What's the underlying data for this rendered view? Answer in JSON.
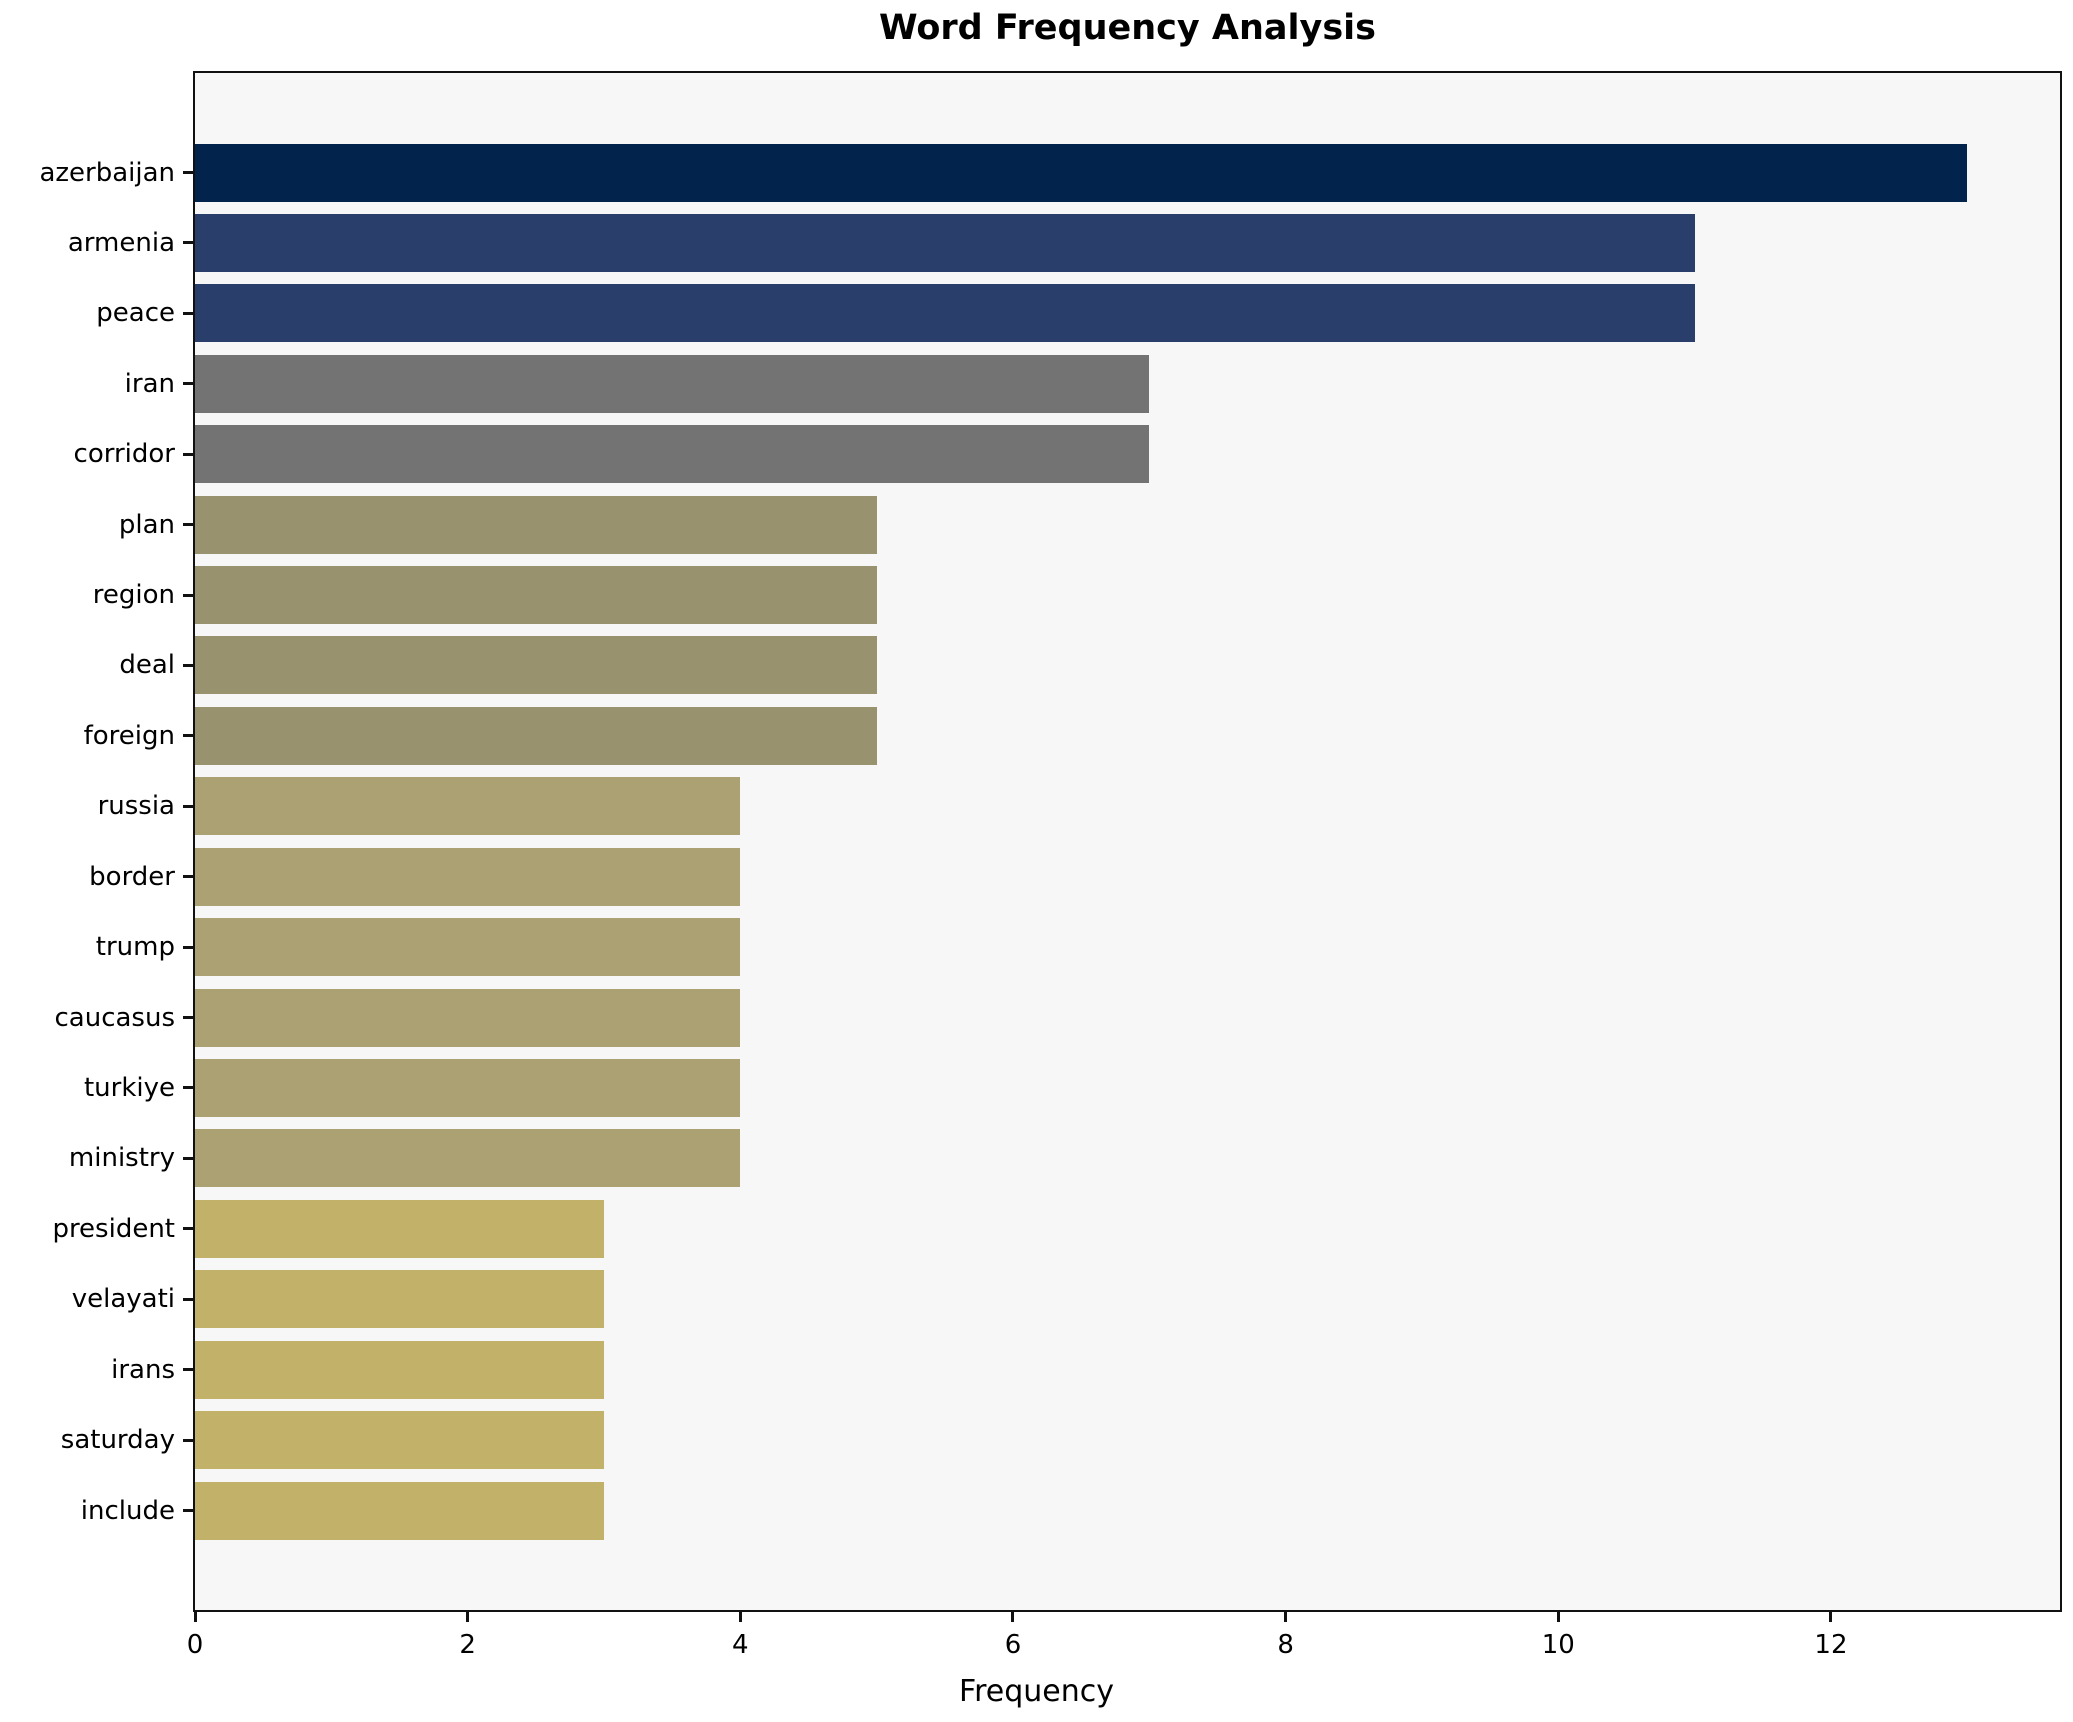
{
  "title": "Word Frequency Analysis",
  "chart_data": {
    "type": "bar",
    "orientation": "horizontal",
    "title": "Word Frequency Analysis",
    "xlabel": "Frequency",
    "ylabel": "",
    "categories": [
      "azerbaijan",
      "armenia",
      "peace",
      "iran",
      "corridor",
      "plan",
      "region",
      "deal",
      "foreign",
      "russia",
      "border",
      "trump",
      "caucasus",
      "turkiye",
      "ministry",
      "president",
      "velayati",
      "irans",
      "saturday",
      "include"
    ],
    "values": [
      13,
      11,
      11,
      7,
      7,
      5,
      5,
      5,
      5,
      4,
      4,
      4,
      4,
      4,
      4,
      3,
      3,
      3,
      3,
      3
    ],
    "bar_colors": [
      "#02234c",
      "#2a3e6b",
      "#2a3e6b",
      "#737373",
      "#737373",
      "#98926f",
      "#98926f",
      "#98926f",
      "#98926f",
      "#aba172",
      "#aba172",
      "#aba172",
      "#aba172",
      "#aba172",
      "#aba172",
      "#c2b169",
      "#c2b169",
      "#c2b169",
      "#c2b169",
      "#c2b169"
    ],
    "xticks": [
      0,
      2,
      4,
      6,
      8,
      10,
      12
    ],
    "xlim": [
      0,
      13.68
    ],
    "grid": false,
    "legend": null,
    "plot_background": "#f7f7f7",
    "figure_background": "#ffffff",
    "spine_color": "#111111"
  }
}
